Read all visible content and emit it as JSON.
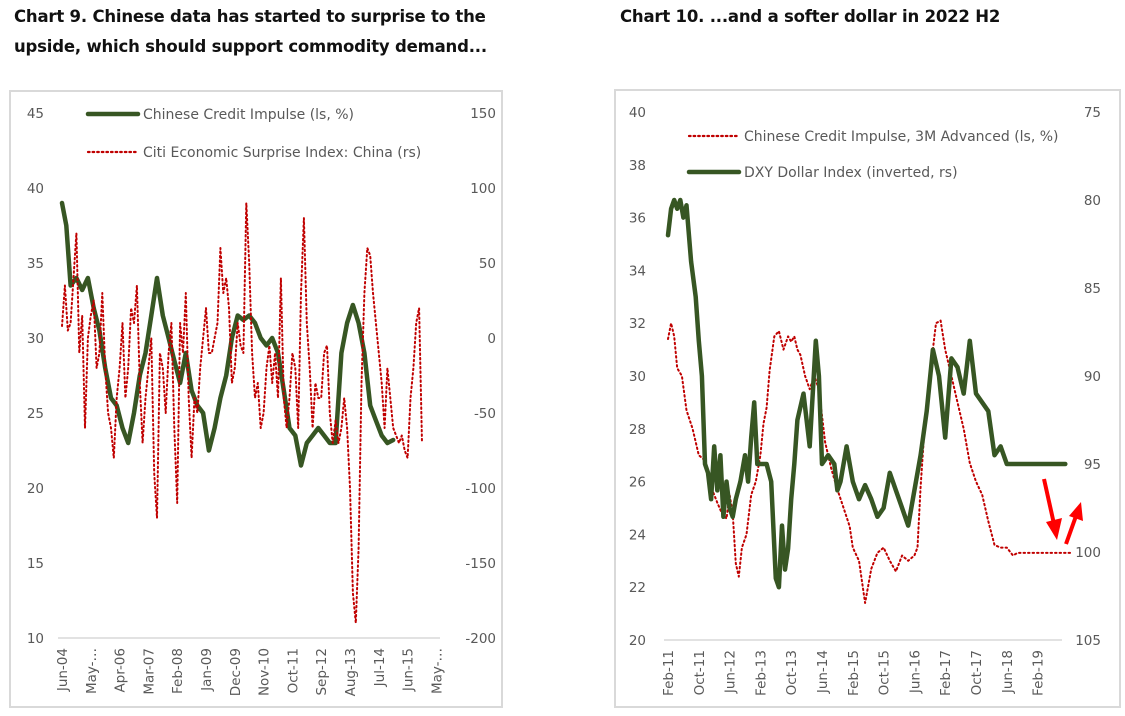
{
  "colors": {
    "green": "#375623",
    "red": "#c00000",
    "arrow": "#ff0000",
    "axis": "#d9d9d9",
    "text": "#595959"
  },
  "chart_data": [
    {
      "type": "line",
      "title": "Chart 9. Chinese data has started to surprise to the upside, which should support commodity demand...",
      "title_lines": [
        "Chart 9. Chinese data has started to surprise to the",
        "upside, which should support commodity demand..."
      ],
      "x_tick_labels": [
        "Jun-04",
        "May-…",
        "Apr-06",
        "Mar-07",
        "Feb-08",
        "Jan-09",
        "Dec-09",
        "Nov-10",
        "Oct-11",
        "Sep-12",
        "Aug-13",
        "Jul-14",
        "Jun-15",
        "May-…"
      ],
      "y_left": {
        "min": 10,
        "max": 45,
        "ticks": [
          "45",
          "40",
          "35",
          "30",
          "25",
          "20",
          "15",
          "10"
        ]
      },
      "y_right": {
        "min": -200,
        "max": 150,
        "ticks": [
          "150",
          "100",
          "50",
          "0",
          "-50",
          "-100",
          "-150",
          "-200"
        ]
      },
      "legend_position": "top",
      "series": [
        {
          "name": "Chinese Credit Impulse (ls, %)",
          "axis": "left",
          "style": "solid",
          "x_tick_index": [
            0,
            0.15,
            0.3,
            0.5,
            0.7,
            0.9,
            1.1,
            1.3,
            1.5,
            1.7,
            1.9,
            2.1,
            2.3,
            2.5,
            2.7,
            2.9,
            3.1,
            3.3,
            3.5,
            3.7,
            3.9,
            4.1,
            4.3,
            4.5,
            4.7,
            4.9,
            5.1,
            5.3,
            5.5,
            5.7,
            5.9,
            6.1,
            6.3,
            6.5,
            6.7,
            6.9,
            7.1,
            7.3,
            7.5,
            7.7,
            7.9,
            8.1,
            8.3,
            8.5,
            8.7,
            8.9,
            9.1,
            9.3,
            9.5,
            9.7,
            9.9,
            10.1,
            10.3,
            10.5,
            10.7,
            10.9,
            11.1,
            11.3,
            11.5,
            11.7,
            11.9,
            12.1,
            12.3,
            12.5
          ],
          "values": [
            39,
            37.5,
            33.5,
            34,
            33.2,
            34,
            32,
            30.5,
            28,
            26,
            25.5,
            24,
            23,
            25,
            27.5,
            29,
            31.5,
            34,
            31.5,
            30,
            28.5,
            27,
            29,
            26.5,
            25.5,
            25,
            22.5,
            24,
            26,
            27.5,
            30,
            31.5,
            31.2,
            31.5,
            31,
            30,
            29.5,
            30,
            29,
            26.5,
            24,
            23.5,
            21.5,
            23,
            23.5,
            24,
            23.5,
            23,
            23,
            29,
            31,
            32.2,
            31,
            29,
            25.5,
            24.5,
            23.5,
            23,
            23.2,
            null,
            null,
            null,
            null,
            null
          ]
        },
        {
          "name": "Citi Economic Surprise Index: China (rs)",
          "axis": "right",
          "style": "dotted",
          "x_tick_index": [
            0,
            0.1,
            0.2,
            0.3,
            0.4,
            0.5,
            0.6,
            0.7,
            0.8,
            0.9,
            1.0,
            1.1,
            1.2,
            1.3,
            1.4,
            1.5,
            1.6,
            1.7,
            1.8,
            1.9,
            2.0,
            2.1,
            2.2,
            2.3,
            2.4,
            2.5,
            2.6,
            2.7,
            2.8,
            2.9,
            3.0,
            3.1,
            3.2,
            3.3,
            3.4,
            3.5,
            3.6,
            3.7,
            3.8,
            3.9,
            4.0,
            4.1,
            4.2,
            4.3,
            4.4,
            4.5,
            4.6,
            4.7,
            4.8,
            4.9,
            5.0,
            5.1,
            5.2,
            5.3,
            5.4,
            5.5,
            5.6,
            5.7,
            5.8,
            5.9,
            6.0,
            6.1,
            6.2,
            6.3,
            6.4,
            6.5,
            6.6,
            6.7,
            6.8,
            6.9,
            7.0,
            7.1,
            7.2,
            7.3,
            7.4,
            7.5,
            7.6,
            7.7,
            7.8,
            7.9,
            8.0,
            8.1,
            8.2,
            8.3,
            8.4,
            8.5,
            8.6,
            8.7,
            8.8,
            8.9,
            9.0,
            9.1,
            9.2,
            9.3,
            9.4,
            9.5,
            9.6,
            9.7,
            9.8,
            9.9,
            10.0,
            10.1,
            10.2,
            10.3,
            10.4,
            10.5,
            10.6,
            10.7,
            10.8,
            10.9,
            11.0,
            11.1,
            11.2,
            11.3,
            11.4,
            11.5,
            11.6,
            11.7,
            11.8,
            11.9,
            12.0,
            12.1,
            12.2,
            12.3,
            12.4,
            12.5
          ],
          "values": [
            8,
            35,
            5,
            10,
            40,
            70,
            -10,
            15,
            -60,
            0,
            15,
            25,
            -20,
            -10,
            30,
            -20,
            -50,
            -60,
            -80,
            -40,
            -20,
            10,
            -40,
            -20,
            20,
            10,
            35,
            -30,
            -70,
            -40,
            -20,
            0,
            -90,
            -120,
            -10,
            -20,
            -50,
            -10,
            10,
            -60,
            -110,
            10,
            -10,
            30,
            -40,
            -80,
            -40,
            -50,
            -20,
            0,
            20,
            -10,
            -10,
            0,
            10,
            60,
            30,
            40,
            20,
            -30,
            -20,
            10,
            -5,
            -10,
            90,
            50,
            -10,
            -40,
            -30,
            -60,
            -50,
            -20,
            -5,
            -30,
            -10,
            -40,
            40,
            -40,
            -60,
            -40,
            -10,
            -20,
            -60,
            30,
            80,
            10,
            -20,
            -60,
            -30,
            -40,
            -40,
            -10,
            -5,
            -50,
            -70,
            -55,
            -70,
            -60,
            -40,
            -60,
            -100,
            -170,
            -190,
            -140,
            -30,
            30,
            60,
            55,
            30,
            10,
            -10,
            -30,
            -60,
            -20,
            -40,
            -60,
            -65,
            -70,
            -65,
            -75,
            -80,
            -40,
            -20,
            10,
            20,
            -70,
            -80,
            -70,
            -60,
            15
          ]
        }
      ]
    },
    {
      "type": "line",
      "title": "Chart 10. ...and a softer dollar in 2022 H2",
      "x_tick_labels": [
        "Feb-11",
        "Oct-11",
        "Jun-12",
        "Feb-13",
        "Oct-13",
        "Jun-14",
        "Feb-15",
        "Oct-15",
        "Jun-16",
        "Feb-17",
        "Oct-17",
        "Jun-18",
        "Feb-19"
      ],
      "y_left": {
        "min": 20,
        "max": 40,
        "ticks": [
          "40",
          "38",
          "36",
          "34",
          "32",
          "30",
          "28",
          "26",
          "24",
          "22",
          "20"
        ]
      },
      "y_right": {
        "min": 75,
        "max": 105,
        "inverted": true,
        "ticks": [
          "75",
          "80",
          "85",
          "90",
          "95",
          "100",
          "105"
        ]
      },
      "legend_position": "top",
      "annotations": [
        "red-arrow-down",
        "red-arrow-up"
      ],
      "series": [
        {
          "name": "Chinese Credit Impulse, 3M Advanced (ls, %)",
          "axis": "left",
          "style": "dotted",
          "x_tick_index": [
            0,
            0.1,
            0.2,
            0.3,
            0.45,
            0.6,
            0.8,
            1.0,
            1.2,
            1.4,
            1.6,
            1.75,
            1.9,
            2.0,
            2.1,
            2.2,
            2.3,
            2.4,
            2.55,
            2.7,
            2.85,
            3.0,
            3.1,
            3.2,
            3.3,
            3.45,
            3.6,
            3.75,
            3.9,
            4.0,
            4.1,
            4.2,
            4.3,
            4.45,
            4.6,
            4.75,
            4.9,
            5.0,
            5.1,
            5.3,
            5.5,
            5.7,
            5.9,
            6.0,
            6.2,
            6.4,
            6.6,
            6.8,
            7.0,
            7.2,
            7.4,
            7.6,
            7.8,
            8.0,
            8.1,
            8.2,
            8.3,
            8.4,
            8.55,
            8.7,
            8.85,
            9.0,
            9.2,
            9.4,
            9.6,
            9.8,
            10.0,
            10.2,
            10.4,
            10.6,
            10.8,
            11.0,
            11.2,
            11.35,
            11.5,
            11.7,
            11.9,
            12.0,
            12.2,
            12.4,
            12.6,
            12.75,
            12.9,
            13.1
          ],
          "values": [
            31.4,
            32,
            31.5,
            30.3,
            30,
            28.7,
            28,
            27,
            26.8,
            25.8,
            25.2,
            24.8,
            24.6,
            25.5,
            24.8,
            22.9,
            22.4,
            23.5,
            24,
            25.5,
            26,
            27,
            28.2,
            28.8,
            30.2,
            31.5,
            31.7,
            31,
            31.5,
            31.3,
            31.5,
            31,
            30.8,
            30,
            29.5,
            30,
            29.5,
            28.5,
            27.5,
            26.5,
            25.7,
            25,
            24.3,
            23.5,
            23,
            21.4,
            22.7,
            23.3,
            23.5,
            23,
            22.6,
            23.2,
            23,
            23.2,
            23.5,
            25.8,
            27.5,
            28.8,
            30.5,
            32,
            32.1,
            31,
            30,
            29,
            28,
            26.7,
            26,
            25.5,
            24.5,
            23.6,
            23.5,
            23.5,
            23.2,
            23.3,
            23.3,
            23.3,
            23.3,
            23.3,
            23.3,
            23.3,
            23.3,
            23.3,
            23.3,
            23.3
          ]
        },
        {
          "name": "DXY Dollar Index (inverted, rs)",
          "axis": "right",
          "style": "solid",
          "x_tick_index": [
            0,
            0.1,
            0.2,
            0.3,
            0.4,
            0.5,
            0.6,
            0.75,
            0.9,
            1.0,
            1.1,
            1.2,
            1.3,
            1.4,
            1.5,
            1.6,
            1.7,
            1.8,
            1.9,
            2.0,
            2.1,
            2.2,
            2.35,
            2.5,
            2.6,
            2.7,
            2.8,
            2.9,
            3.0,
            3.1,
            3.2,
            3.35,
            3.5,
            3.6,
            3.7,
            3.8,
            3.9,
            4.0,
            4.1,
            4.2,
            4.4,
            4.6,
            4.8,
            4.9,
            5.0,
            5.2,
            5.4,
            5.5,
            5.6,
            5.8,
            6.0,
            6.2,
            6.4,
            6.6,
            6.8,
            7.0,
            7.2,
            7.4,
            7.6,
            7.8,
            8.0,
            8.2,
            8.4,
            8.6,
            8.8,
            9.0,
            9.2,
            9.4,
            9.6,
            9.8,
            10.0,
            10.2,
            10.4,
            10.6,
            10.8,
            11.0,
            11.2,
            11.3,
            11.5,
            11.7,
            11.9,
            12.1,
            12.3,
            12.5,
            12.7,
            12.9
          ],
          "values": [
            82,
            80.5,
            80,
            80.5,
            80,
            81,
            80.3,
            83.5,
            85.5,
            88,
            90,
            95,
            95.5,
            97,
            94,
            96.5,
            94.5,
            98,
            96,
            97.5,
            98,
            97,
            96,
            94.5,
            96,
            93.5,
            91.5,
            95,
            95,
            95,
            95,
            96,
            101.5,
            102,
            98.5,
            101,
            99.8,
            97,
            95,
            92.5,
            91,
            94,
            88,
            90,
            95,
            94.5,
            95,
            96.5,
            96,
            94,
            96,
            97,
            96.2,
            97,
            98,
            97.5,
            95.5,
            96.5,
            97.5,
            98.5,
            96.5,
            94.5,
            92,
            88.5,
            90,
            93.5,
            89,
            89.5,
            91,
            88,
            91,
            91.5,
            92,
            94.5,
            94,
            95,
            95,
            95,
            95,
            95,
            95,
            95,
            95,
            95,
            95,
            95
          ]
        }
      ]
    }
  ],
  "chart1": {
    "title_line1": "Chart 9. Chinese data has started to surprise to the",
    "title_line2": "upside, which should support commodity demand...",
    "legend1": "Chinese Credit Impulse (ls, %)",
    "legend2": "Citi Economic Surprise Index: China (rs)"
  },
  "chart2": {
    "title": "Chart 10. ...and a softer dollar in 2022 H2",
    "legend1": "Chinese Credit Impulse, 3M Advanced (ls, %)",
    "legend2": "DXY Dollar Index (inverted, rs)"
  }
}
